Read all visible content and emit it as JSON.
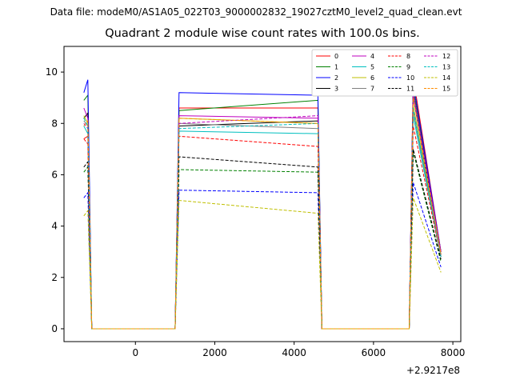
{
  "figure": {
    "suptitle": "Data file: modeM0/AS1A05_022T03_9000002832_19027cztM0_level2_quad_clean.evt"
  },
  "chart_data": {
    "type": "line",
    "title": "Quadrant 2 module wise count rates with 100.0s bins.",
    "xlabel": "",
    "ylabel": "",
    "x_offset_label": "+2.9217e8",
    "xlim": [
      -1800,
      8200
    ],
    "ylim": [
      -0.5,
      11
    ],
    "xticks": [
      0,
      2000,
      4000,
      6000,
      8000
    ],
    "yticks": [
      0,
      2,
      4,
      6,
      8,
      10
    ],
    "grid": false,
    "legend": {
      "placement": "top-right",
      "columns": 4
    },
    "x": [
      -1300,
      -1200,
      -1100,
      1000,
      1100,
      4600,
      4700,
      6900,
      7000,
      7700
    ],
    "series": [
      {
        "name": "0",
        "color": "#ff0000",
        "dash": "solid",
        "values": [
          7.4,
          7.5,
          0,
          0,
          8.6,
          8.6,
          0,
          0,
          9.8,
          3.0
        ]
      },
      {
        "name": "1",
        "color": "#008000",
        "dash": "solid",
        "values": [
          8.9,
          9.1,
          0,
          0,
          8.5,
          8.9,
          0,
          0,
          9.4,
          3.0
        ]
      },
      {
        "name": "2",
        "color": "#0000ff",
        "dash": "solid",
        "values": [
          9.2,
          9.7,
          0,
          0,
          9.2,
          9.1,
          0,
          0,
          9.6,
          3.0
        ]
      },
      {
        "name": "3",
        "color": "#000000",
        "dash": "solid",
        "values": [
          8.2,
          8.4,
          0,
          0,
          7.9,
          8.1,
          0,
          0,
          9.1,
          2.8
        ]
      },
      {
        "name": "4",
        "color": "#bf00bf",
        "dash": "solid",
        "values": [
          8.6,
          8.2,
          0,
          0,
          8.3,
          8.2,
          0,
          0,
          9.2,
          3.0
        ]
      },
      {
        "name": "5",
        "color": "#00bfbf",
        "dash": "solid",
        "values": [
          7.9,
          7.6,
          0,
          0,
          7.7,
          7.6,
          0,
          0,
          8.3,
          2.8
        ]
      },
      {
        "name": "6",
        "color": "#bfbf00",
        "dash": "solid",
        "values": [
          8.3,
          8.0,
          0,
          0,
          8.2,
          8.0,
          0,
          0,
          8.7,
          2.9
        ]
      },
      {
        "name": "7",
        "color": "#808080",
        "dash": "solid",
        "values": [
          8.1,
          7.9,
          0,
          0,
          8.0,
          7.8,
          0,
          0,
          8.5,
          2.8
        ]
      },
      {
        "name": "8",
        "color": "#ff0000",
        "dash": "dashed",
        "values": [
          7.4,
          7.2,
          0,
          0,
          7.5,
          7.1,
          0,
          0,
          7.9,
          2.8
        ]
      },
      {
        "name": "9",
        "color": "#008000",
        "dash": "dashed",
        "values": [
          6.1,
          6.3,
          0,
          0,
          6.2,
          6.1,
          0,
          0,
          6.9,
          2.6
        ]
      },
      {
        "name": "10",
        "color": "#0000ff",
        "dash": "dashed",
        "values": [
          5.1,
          5.3,
          0,
          0,
          5.4,
          5.3,
          0,
          0,
          5.7,
          2.4
        ]
      },
      {
        "name": "11",
        "color": "#000000",
        "dash": "dashed",
        "values": [
          6.3,
          6.5,
          0,
          0,
          6.7,
          6.3,
          0,
          0,
          7.0,
          2.7
        ]
      },
      {
        "name": "12",
        "color": "#bf00bf",
        "dash": "dashed",
        "values": [
          8.0,
          7.8,
          0,
          0,
          8.0,
          8.3,
          0,
          0,
          9.2,
          2.9
        ]
      },
      {
        "name": "13",
        "color": "#00bfbf",
        "dash": "dashed",
        "values": [
          8.2,
          7.9,
          0,
          0,
          7.8,
          8.0,
          0,
          0,
          8.6,
          2.8
        ]
      },
      {
        "name": "14",
        "color": "#bfbf00",
        "dash": "dashed",
        "values": [
          4.4,
          4.6,
          0,
          0,
          5.0,
          4.5,
          0,
          0,
          5.1,
          2.2
        ]
      },
      {
        "name": "15",
        "color": "#ff8c00",
        "dash": "dashed",
        "values": [
          7.9,
          8.1,
          0,
          0,
          8.2,
          8.0,
          0,
          0,
          9.0,
          2.9
        ]
      }
    ]
  }
}
